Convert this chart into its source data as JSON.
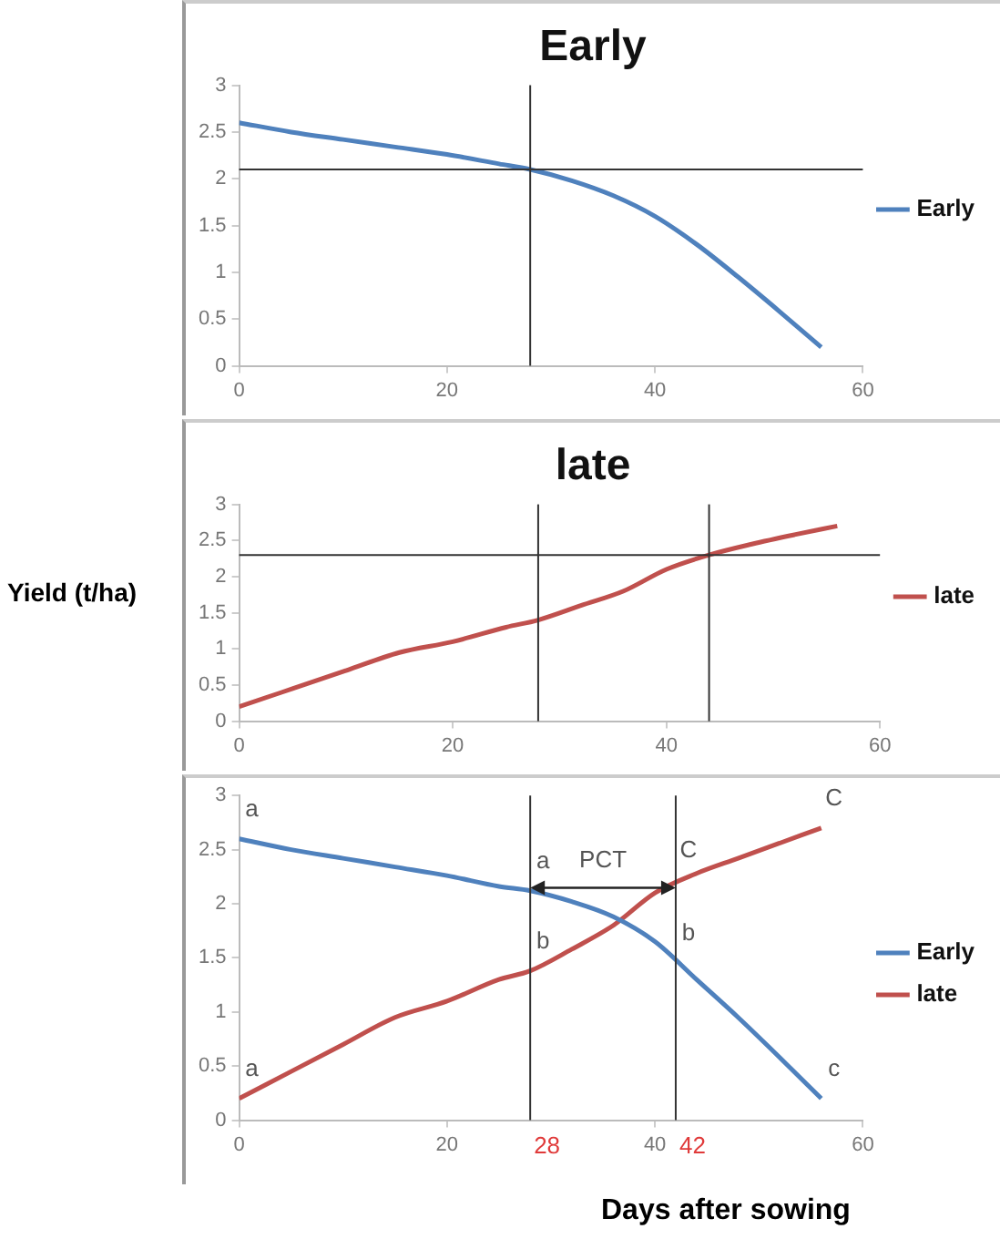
{
  "chart_data": [
    {
      "type": "line",
      "title": "Early",
      "x": [
        0,
        5,
        10,
        15,
        20,
        25,
        28,
        32,
        36,
        40,
        44,
        48,
        52,
        56
      ],
      "series": [
        {
          "name": "Early",
          "color": "#4f81bd",
          "values": [
            2.6,
            2.5,
            2.42,
            2.34,
            2.26,
            2.16,
            2.1,
            1.98,
            1.82,
            1.6,
            1.3,
            0.95,
            0.58,
            0.2
          ]
        }
      ],
      "xlim": [
        0,
        60
      ],
      "xticks": [
        0,
        20,
        40,
        60
      ],
      "ylim": [
        0,
        3
      ],
      "yticks": [
        0,
        0.5,
        1,
        1.5,
        2,
        2.5,
        3
      ],
      "grid": false,
      "legend": "right",
      "ref_lines": [
        {
          "axis": "x",
          "value": 28
        },
        {
          "axis": "y",
          "value": 2.1
        }
      ]
    },
    {
      "type": "line",
      "title": "late",
      "ylabel": "Yield (t/ha)",
      "x": [
        0,
        5,
        10,
        15,
        20,
        25,
        28,
        32,
        36,
        40,
        44,
        48,
        52,
        56
      ],
      "series": [
        {
          "name": "late",
          "color": "#c0504d",
          "values": [
            0.2,
            0.45,
            0.7,
            0.95,
            1.1,
            1.3,
            1.4,
            1.6,
            1.8,
            2.1,
            2.3,
            2.45,
            2.58,
            2.7
          ]
        }
      ],
      "xlim": [
        0,
        60
      ],
      "xticks": [
        0,
        20,
        40,
        60
      ],
      "ylim": [
        0,
        3
      ],
      "yticks": [
        0,
        0.5,
        1,
        1.5,
        2,
        2.5,
        3
      ],
      "grid": false,
      "legend": "right",
      "ref_lines": [
        {
          "axis": "x",
          "value": 28
        },
        {
          "axis": "x",
          "value": 44
        },
        {
          "axis": "y",
          "value": 2.3
        }
      ]
    },
    {
      "type": "line",
      "xlabel": "Days after sowing",
      "x": [
        0,
        5,
        10,
        15,
        20,
        25,
        28,
        32,
        36,
        40,
        44,
        48,
        52,
        56
      ],
      "series": [
        {
          "name": "Early",
          "color": "#4f81bd",
          "values": [
            2.6,
            2.5,
            2.42,
            2.34,
            2.26,
            2.16,
            2.12,
            2.02,
            1.88,
            1.65,
            1.3,
            0.95,
            0.58,
            0.2
          ]
        },
        {
          "name": "late",
          "color": "#c0504d",
          "values": [
            0.2,
            0.45,
            0.7,
            0.95,
            1.1,
            1.3,
            1.38,
            1.58,
            1.8,
            2.1,
            2.28,
            2.42,
            2.56,
            2.7
          ]
        }
      ],
      "xlim": [
        0,
        60
      ],
      "xticks": [
        0,
        20,
        40,
        60
      ],
      "ylim": [
        0,
        3
      ],
      "yticks": [
        0,
        0.5,
        1,
        1.5,
        2,
        2.5,
        3
      ],
      "grid": false,
      "legend": "right",
      "ref_lines": [
        {
          "axis": "x",
          "value": 28,
          "label": "28"
        },
        {
          "axis": "x",
          "value": 42,
          "label": "42"
        }
      ],
      "annotations": [
        {
          "text": "a",
          "x": 0,
          "y": 2.6
        },
        {
          "text": "a",
          "x": 0,
          "y": 0.2
        },
        {
          "text": "a",
          "x": 28,
          "y": 2.12
        },
        "PCT",
        {
          "text": "C",
          "x": 42,
          "y": 2.22
        },
        {
          "text": "b",
          "x": 28,
          "y": 1.38
        },
        {
          "text": "b",
          "x": 42,
          "y": 1.45
        },
        {
          "text": "c",
          "x": 56,
          "y": 0.2
        },
        {
          "text": "C",
          "x": 56,
          "y": 2.7
        }
      ]
    }
  ]
}
